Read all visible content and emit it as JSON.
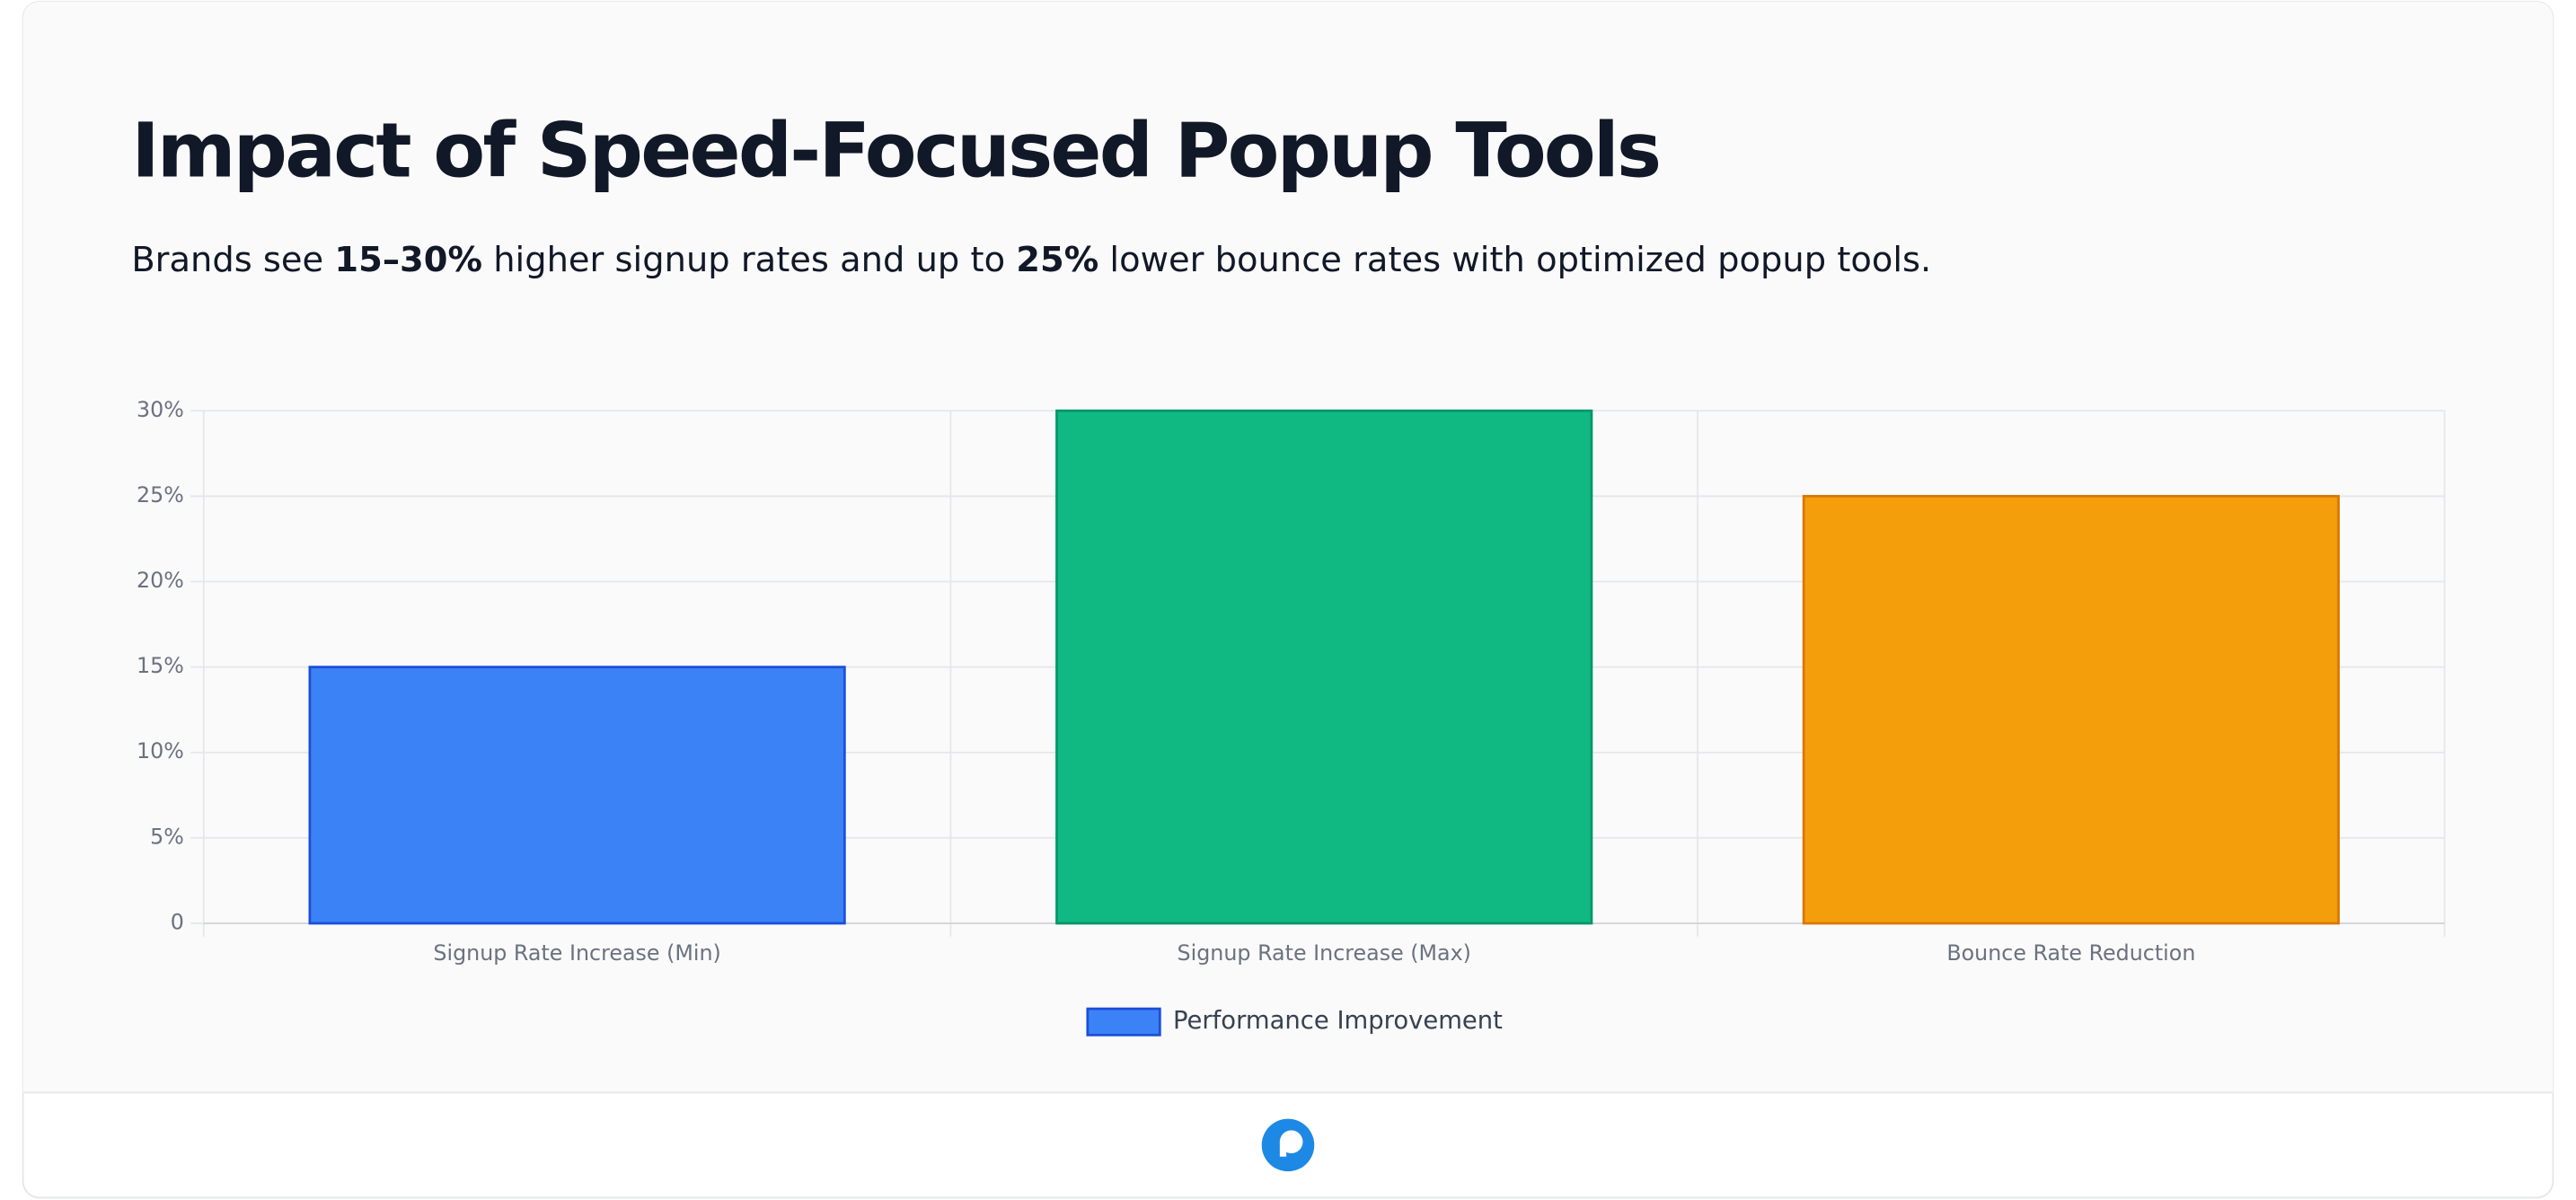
{
  "chart_data": {
    "type": "bar",
    "title": "Impact of Speed-Focused Popup Tools",
    "subtitle": [
      {
        "text": "Brands see ",
        "bold": false
      },
      {
        "text": "15–30%",
        "bold": true
      },
      {
        "text": " higher signup rates and up to ",
        "bold": false
      },
      {
        "text": "25%",
        "bold": true
      },
      {
        "text": " lower bounce rates with optimized popup tools.",
        "bold": false
      }
    ],
    "categories": [
      "Signup Rate Increase (Min)",
      "Signup Rate Increase (Max)",
      "Bounce Rate Reduction"
    ],
    "series": [
      {
        "name": "Performance Improvement",
        "values": [
          15,
          30,
          25
        ],
        "colors": [
          "#3b82f6",
          "#10b981",
          "#f59e0b"
        ],
        "border_colors": [
          "#1d4ed8",
          "#059669",
          "#d97706"
        ]
      }
    ],
    "ylim": [
      0,
      30
    ],
    "yticks": [
      0,
      {
        "value": 5,
        "label": "5%"
      },
      {
        "value": 10,
        "label": "10%"
      },
      {
        "value": 15,
        "label": "15%"
      },
      {
        "value": 20,
        "label": "20%"
      },
      {
        "value": 25,
        "label": "25%"
      },
      {
        "value": 30,
        "label": "30%"
      }
    ],
    "grid": true,
    "legend": "bottom"
  }
}
